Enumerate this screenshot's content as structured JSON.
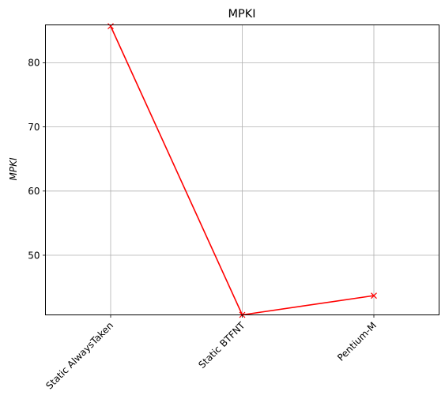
{
  "chart_data": {
    "type": "line",
    "title": "MPKI",
    "xlabel": "",
    "ylabel": "MPKI",
    "categories": [
      "Static AlwaysTaken",
      "Static BTFNT",
      "Pentium-M"
    ],
    "series": [
      {
        "values": [
          85.7,
          40.7,
          43.7
        ],
        "color": "#ff0000",
        "marker": "x"
      }
    ],
    "ylim": [
      40.7,
      85.9
    ],
    "yticks": [
      50,
      60,
      70,
      80
    ],
    "grid": true
  }
}
